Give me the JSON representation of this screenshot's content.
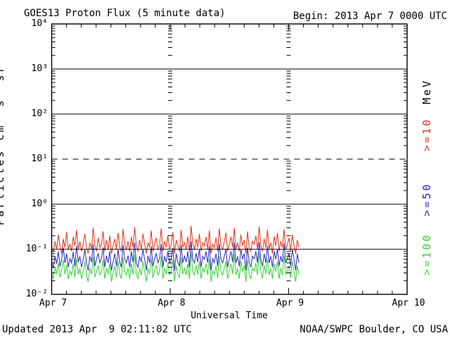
{
  "header": {
    "begin_label": "Begin: 2013 Apr 7 0000 UTC"
  },
  "footer": {
    "updated": "Updated 2013 Apr  9 02:11:02 UTC",
    "source": "NOAA/SWPC Boulder, CO USA"
  },
  "colors": {
    "background": "#ffffff",
    "frame": "#000000",
    "red_series": "#e43018",
    "blue_series": "#2828be",
    "green_series": "#34d234"
  },
  "chart_data": {
    "type": "line",
    "title": "GOES13 Proton Flux (5 minute data)",
    "xlabel": "Universal Time",
    "ylabel": "Particles cm⁻²s⁻¹sr⁻¹",
    "y_scale": "log",
    "y_tick_labels": [
      "10⁴",
      "10³",
      "10²",
      "10¹",
      "10⁰",
      "10⁻¹",
      "10⁻²"
    ],
    "y_exponent_top": 4,
    "y_exponent_bottom": -2,
    "x_day_labels": [
      "Apr 7",
      "Apr 8",
      "Apr 9",
      "Apr 10"
    ],
    "x_span_hours": 72,
    "x_minor_tick_hours": 3,
    "grid": {
      "solid_hlines_at": [
        1000,
        100,
        1,
        0.1
      ],
      "dashed_hlines_at": [
        10
      ],
      "day_boundary_vlines_hours": [
        24,
        48
      ]
    },
    "legend": {
      "unit_label": "MeV",
      "entries": [
        {
          "label": ">=10",
          "color": "#e43018"
        },
        {
          "label": ">=50",
          "color": "#2828be"
        },
        {
          "label": ">=100",
          "color": "#34d234"
        }
      ]
    },
    "series": [
      {
        "name": ">=10 MeV",
        "color": "#e43018",
        "start_hour": 0,
        "end_hour": 50.1,
        "values": [
          0.11,
          0.09,
          0.15,
          0.1,
          0.21,
          0.12,
          0.08,
          0.17,
          0.11,
          0.24,
          0.1,
          0.13,
          0.09,
          0.19,
          0.12,
          0.27,
          0.1,
          0.15,
          0.09,
          0.13,
          0.22,
          0.11,
          0.08,
          0.14,
          0.1,
          0.3,
          0.12,
          0.09,
          0.18,
          0.11,
          0.13,
          0.25,
          0.09,
          0.16,
          0.1,
          0.2,
          0.08,
          0.12,
          0.17,
          0.1,
          0.23,
          0.11,
          0.09,
          0.28,
          0.13,
          0.1,
          0.15,
          0.09,
          0.19,
          0.11,
          0.31,
          0.12,
          0.09,
          0.16,
          0.1,
          0.22,
          0.13,
          0.08,
          0.14,
          0.11,
          0.26,
          0.09,
          0.13,
          0.18,
          0.1,
          0.12,
          0.29,
          0.09,
          0.15,
          0.11,
          0.2,
          0.1,
          0.13,
          0.24,
          0.08,
          0.16,
          0.12,
          0.09,
          0.27,
          0.11,
          0.14,
          0.1,
          0.19,
          0.09,
          0.33,
          0.13,
          0.1,
          0.17,
          0.11,
          0.22,
          0.09,
          0.14,
          0.12,
          0.19,
          0.1,
          0.26,
          0.08,
          0.13,
          0.11,
          0.18,
          0.09,
          0.29,
          0.12,
          0.1,
          0.15,
          0.23,
          0.09,
          0.13,
          0.19,
          0.11,
          0.3,
          0.1,
          0.14,
          0.09,
          0.21,
          0.12,
          0.16,
          0.08,
          0.25,
          0.11,
          0.09,
          0.15,
          0.13,
          0.2,
          0.1,
          0.32,
          0.12,
          0.09,
          0.17,
          0.11,
          0.27,
          0.1,
          0.14,
          0.08,
          0.19,
          0.12,
          0.23,
          0.09,
          0.15,
          0.11,
          0.28,
          0.1,
          0.13,
          0.18,
          0.09,
          0.21,
          0.12,
          0.08,
          0.16,
          0.11
        ]
      },
      {
        "name": ">=50 MeV",
        "color": "#2828be",
        "start_hour": 0,
        "end_hour": 50.1,
        "values": [
          0.05,
          0.04,
          0.07,
          0.048,
          0.09,
          0.042,
          0.06,
          0.11,
          0.05,
          0.08,
          0.04,
          0.062,
          0.05,
          0.088,
          0.042,
          0.12,
          0.052,
          0.07,
          0.04,
          0.06,
          0.1,
          0.05,
          0.034,
          0.07,
          0.052,
          0.13,
          0.042,
          0.06,
          0.082,
          0.05,
          0.062,
          0.11,
          0.04,
          0.072,
          0.05,
          0.09,
          0.034,
          0.052,
          0.08,
          0.042,
          0.1,
          0.052,
          0.04,
          0.125,
          0.062,
          0.05,
          0.072,
          0.04,
          0.09,
          0.052,
          0.14,
          0.05,
          0.04,
          0.07,
          0.052,
          0.1,
          0.06,
          0.034,
          0.072,
          0.05,
          0.115,
          0.042,
          0.06,
          0.082,
          0.05,
          0.062,
          0.13,
          0.04,
          0.07,
          0.052,
          0.09,
          0.05,
          0.062,
          0.108,
          0.034,
          0.08,
          0.052,
          0.042,
          0.125,
          0.05,
          0.07,
          0.052,
          0.09,
          0.04,
          0.15,
          0.06,
          0.05,
          0.082,
          0.052,
          0.1,
          0.04,
          0.07,
          0.06,
          0.09,
          0.05,
          0.118,
          0.034,
          0.062,
          0.05,
          0.08,
          0.042,
          0.132,
          0.06,
          0.05,
          0.07,
          0.1,
          0.04,
          0.062,
          0.09,
          0.052,
          0.14,
          0.05,
          0.07,
          0.042,
          0.1,
          0.06,
          0.08,
          0.034,
          0.11,
          0.052,
          0.04,
          0.07,
          0.062,
          0.09,
          0.05,
          0.145,
          0.06,
          0.042,
          0.08,
          0.05,
          0.118,
          0.05,
          0.07,
          0.04,
          0.09,
          0.06,
          0.1,
          0.042,
          0.07,
          0.052,
          0.135,
          0.05,
          0.062,
          0.08,
          0.042,
          0.1,
          0.06,
          0.034,
          0.08,
          0.05
        ]
      },
      {
        "name": ">=100 MeV",
        "color": "#34d234",
        "start_hour": 0,
        "end_hour": 50.1,
        "values": [
          0.03,
          0.022,
          0.04,
          0.028,
          0.05,
          0.024,
          0.034,
          0.058,
          0.028,
          0.045,
          0.022,
          0.033,
          0.027,
          0.048,
          0.024,
          0.062,
          0.028,
          0.038,
          0.022,
          0.032,
          0.054,
          0.027,
          0.019,
          0.038,
          0.028,
          0.068,
          0.024,
          0.032,
          0.044,
          0.027,
          0.033,
          0.058,
          0.022,
          0.038,
          0.028,
          0.05,
          0.019,
          0.029,
          0.043,
          0.024,
          0.054,
          0.028,
          0.022,
          0.066,
          0.032,
          0.027,
          0.038,
          0.022,
          0.048,
          0.028,
          0.075,
          0.028,
          0.022,
          0.038,
          0.027,
          0.054,
          0.032,
          0.019,
          0.038,
          0.028,
          0.062,
          0.023,
          0.033,
          0.044,
          0.027,
          0.032,
          0.07,
          0.022,
          0.038,
          0.028,
          0.05,
          0.027,
          0.033,
          0.058,
          0.019,
          0.043,
          0.028,
          0.023,
          0.066,
          0.028,
          0.038,
          0.027,
          0.048,
          0.022,
          0.088,
          0.032,
          0.027,
          0.044,
          0.028,
          0.054,
          0.022,
          0.038,
          0.032,
          0.048,
          0.027,
          0.062,
          0.019,
          0.033,
          0.028,
          0.043,
          0.023,
          0.07,
          0.032,
          0.027,
          0.038,
          0.054,
          0.022,
          0.033,
          0.048,
          0.028,
          0.078,
          0.027,
          0.038,
          0.022,
          0.054,
          0.032,
          0.043,
          0.019,
          0.058,
          0.028,
          0.022,
          0.038,
          0.033,
          0.05,
          0.027,
          0.085,
          0.032,
          0.023,
          0.044,
          0.028,
          0.062,
          0.027,
          0.038,
          0.022,
          0.048,
          0.032,
          0.054,
          0.022,
          0.038,
          0.027,
          0.072,
          0.028,
          0.033,
          0.043,
          0.023,
          0.054,
          0.032,
          0.019,
          0.043,
          0.027
        ]
      }
    ]
  }
}
